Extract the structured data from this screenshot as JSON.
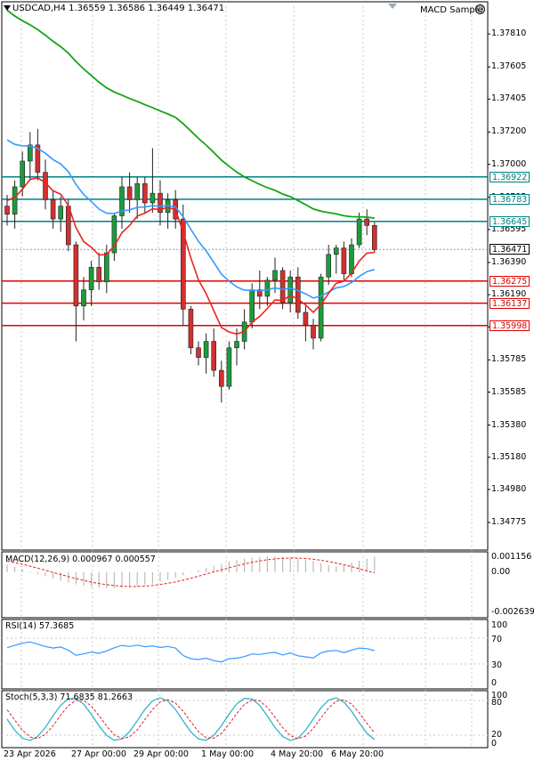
{
  "header": {
    "symbol_tf": "USDCAD,H4",
    "open": "1.36559",
    "high": "1.36586",
    "low": "1.36449",
    "close": "1.36471",
    "expert_label": "MACD Sample"
  },
  "icons": {
    "menu": "dropdown-triangle-icon",
    "status": "smiley-icon",
    "corner": "corner-triangle-icon"
  },
  "colors": {
    "sma_slow": "#16a316",
    "sma_mid": "#3399ff",
    "sma_fast": "#ee2222",
    "teal": "#008080",
    "red": "#e00000",
    "bull": "#1d9b3c",
    "bear": "#d23030"
  },
  "price_axis": [
    "1.37810",
    "1.37605",
    "1.37405",
    "1.37200",
    "1.37000",
    "1.36795",
    "1.36595",
    "1.36390",
    "1.36190",
    "1.35990",
    "1.35785",
    "1.35585",
    "1.35380",
    "1.35180",
    "1.34980",
    "1.34775"
  ],
  "levels": {
    "resistance": [
      "1.36922",
      "1.36783",
      "1.36645"
    ],
    "support": [
      "1.36275",
      "1.36137",
      "1.35998"
    ],
    "current": "1.36471"
  },
  "time_axis": [
    "23 Apr 2026",
    "27 Apr 00:00",
    "29 Apr 00:00",
    "1 May 00:00",
    "4 May 20:00",
    "6 May 20:00"
  ],
  "macd": {
    "label": "MACD(12,26,9) 0.000967 0.000557",
    "scale": [
      "0.001156",
      "0.00",
      "-0.002639"
    ]
  },
  "rsi": {
    "label": "RSI(14) 57.3685",
    "scale": [
      "100",
      "70",
      "30",
      "0"
    ]
  },
  "stoch": {
    "label": "Stoch(5,3,3) 71.6835 81.2663",
    "scale": [
      "100",
      "80",
      "20",
      "0"
    ]
  },
  "chart_data": {
    "type": "candlestick",
    "price_range": [
      1.3467,
      1.3791
    ],
    "candles": [
      [
        1.3674,
        1.3681,
        1.3662,
        1.3669
      ],
      [
        1.3669,
        1.369,
        1.366,
        1.3686
      ],
      [
        1.3686,
        1.3708,
        1.368,
        1.3702
      ],
      [
        1.3702,
        1.372,
        1.369,
        1.3712
      ],
      [
        1.3712,
        1.3722,
        1.369,
        1.3695
      ],
      [
        1.3695,
        1.3703,
        1.3672,
        1.3678
      ],
      [
        1.3678,
        1.3684,
        1.366,
        1.3666
      ],
      [
        1.3666,
        1.368,
        1.3658,
        1.3674
      ],
      [
        1.3674,
        1.3678,
        1.3646,
        1.365
      ],
      [
        1.365,
        1.3652,
        1.359,
        1.3612
      ],
      [
        1.3612,
        1.363,
        1.3603,
        1.3622
      ],
      [
        1.3622,
        1.364,
        1.3612,
        1.3636
      ],
      [
        1.3636,
        1.3645,
        1.3622,
        1.3627
      ],
      [
        1.3627,
        1.365,
        1.362,
        1.3645
      ],
      [
        1.3645,
        1.367,
        1.364,
        1.3668
      ],
      [
        1.3668,
        1.3692,
        1.366,
        1.3686
      ],
      [
        1.3686,
        1.3695,
        1.367,
        1.3678
      ],
      [
        1.3678,
        1.3692,
        1.3666,
        1.3688
      ],
      [
        1.3688,
        1.3692,
        1.367,
        1.3676
      ],
      [
        1.3676,
        1.371,
        1.367,
        1.3682
      ],
      [
        1.3682,
        1.369,
        1.3662,
        1.367
      ],
      [
        1.367,
        1.3682,
        1.366,
        1.3678
      ],
      [
        1.3678,
        1.3684,
        1.366,
        1.3666
      ],
      [
        1.3666,
        1.3675,
        1.36,
        1.361
      ],
      [
        1.361,
        1.3612,
        1.3582,
        1.3586
      ],
      [
        1.3586,
        1.359,
        1.3575,
        1.358
      ],
      [
        1.358,
        1.3595,
        1.357,
        1.359
      ],
      [
        1.359,
        1.3598,
        1.3568,
        1.3572
      ],
      [
        1.3572,
        1.3578,
        1.3552,
        1.3562
      ],
      [
        1.3562,
        1.359,
        1.356,
        1.3586
      ],
      [
        1.3586,
        1.3598,
        1.3575,
        1.359
      ],
      [
        1.359,
        1.361,
        1.3585,
        1.3602
      ],
      [
        1.3602,
        1.3626,
        1.3598,
        1.3622
      ],
      [
        1.3622,
        1.3634,
        1.361,
        1.3618
      ],
      [
        1.3618,
        1.363,
        1.3612,
        1.3628
      ],
      [
        1.3628,
        1.3642,
        1.362,
        1.3634
      ],
      [
        1.3634,
        1.3636,
        1.361,
        1.3614
      ],
      [
        1.3614,
        1.3634,
        1.3608,
        1.363
      ],
      [
        1.363,
        1.3636,
        1.3604,
        1.3608
      ],
      [
        1.3608,
        1.3612,
        1.359,
        1.36
      ],
      [
        1.36,
        1.3604,
        1.3585,
        1.3592
      ],
      [
        1.3592,
        1.3632,
        1.359,
        1.363
      ],
      [
        1.363,
        1.365,
        1.3625,
        1.3644
      ],
      [
        1.3644,
        1.365,
        1.3632,
        1.3648
      ],
      [
        1.3648,
        1.3652,
        1.3628,
        1.3632
      ],
      [
        1.3632,
        1.3654,
        1.363,
        1.365
      ],
      [
        1.365,
        1.367,
        1.3648,
        1.3666
      ],
      [
        1.3666,
        1.3672,
        1.3656,
        1.3662
      ],
      [
        1.3662,
        1.3664,
        1.3645,
        1.3647
      ]
    ]
  }
}
